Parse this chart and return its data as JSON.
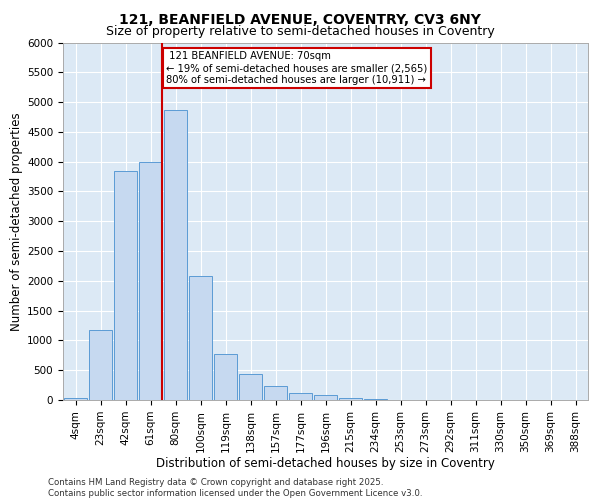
{
  "title_line1": "121, BEANFIELD AVENUE, COVENTRY, CV3 6NY",
  "title_line2": "Size of property relative to semi-detached houses in Coventry",
  "xlabel": "Distribution of semi-detached houses by size in Coventry",
  "ylabel": "Number of semi-detached properties",
  "footer": "Contains HM Land Registry data © Crown copyright and database right 2025.\nContains public sector information licensed under the Open Government Licence v3.0.",
  "bin_labels": [
    "4sqm",
    "23sqm",
    "42sqm",
    "61sqm",
    "80sqm",
    "100sqm",
    "119sqm",
    "138sqm",
    "157sqm",
    "177sqm",
    "196sqm",
    "215sqm",
    "234sqm",
    "253sqm",
    "273sqm",
    "292sqm",
    "311sqm",
    "330sqm",
    "350sqm",
    "369sqm",
    "388sqm"
  ],
  "bar_values": [
    28,
    1180,
    3850,
    4000,
    4870,
    2080,
    780,
    430,
    235,
    120,
    85,
    30,
    10,
    5,
    2,
    0,
    0,
    0,
    0,
    0,
    0
  ],
  "bar_color": "#c6d9f0",
  "bar_edge_color": "#5b9bd5",
  "ylim": [
    0,
    6000
  ],
  "yticks": [
    0,
    500,
    1000,
    1500,
    2000,
    2500,
    3000,
    3500,
    4000,
    4500,
    5000,
    5500,
    6000
  ],
  "property_label": "121 BEANFIELD AVENUE: 70sqm",
  "pct_smaller": 19,
  "count_smaller": 2565,
  "pct_larger": 80,
  "count_larger": 10911,
  "vline_color": "#cc0000",
  "vline_bin_index": 3.47,
  "annotation_box_color": "#cc0000",
  "background_color": "#dce9f5",
  "grid_color": "#ffffff",
  "title_fontsize": 10,
  "subtitle_fontsize": 9,
  "axis_label_fontsize": 8.5,
  "tick_fontsize": 7.5,
  "footer_fontsize": 6.2
}
